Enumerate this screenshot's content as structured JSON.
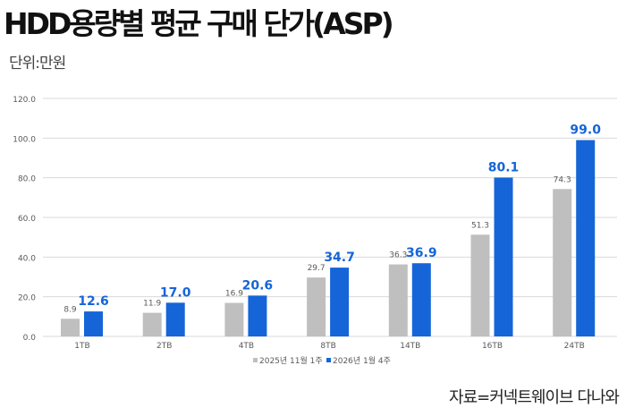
{
  "title": "HDD용량별 평균 구매 단가(ASP)",
  "unit": "단위:만원",
  "source": "자료=커넥트웨이브 다나와",
  "colors": {
    "series1": "#bfbfbf",
    "series2": "#1565d8",
    "grid": "#d9d9d9"
  },
  "chart_data": {
    "type": "bar",
    "title": "HDD용량별 평균 구매 단가(ASP)",
    "categories": [
      "1TB",
      "2TB",
      "4TB",
      "8TB",
      "14TB",
      "16TB",
      "24TB"
    ],
    "series": [
      {
        "name": "2025년 11월 1주",
        "values": [
          8.9,
          11.9,
          16.9,
          29.7,
          36.3,
          51.3,
          74.3
        ]
      },
      {
        "name": "2026년 1월 4주",
        "values": [
          12.6,
          17.0,
          20.6,
          34.7,
          36.9,
          80.1,
          99.0
        ]
      }
    ],
    "ylim": [
      0,
      120
    ],
    "yticks": [
      "0.0",
      "20.0",
      "40.0",
      "60.0",
      "80.0",
      "100.0",
      "120.0"
    ],
    "grid": true,
    "legend": "bottom"
  }
}
